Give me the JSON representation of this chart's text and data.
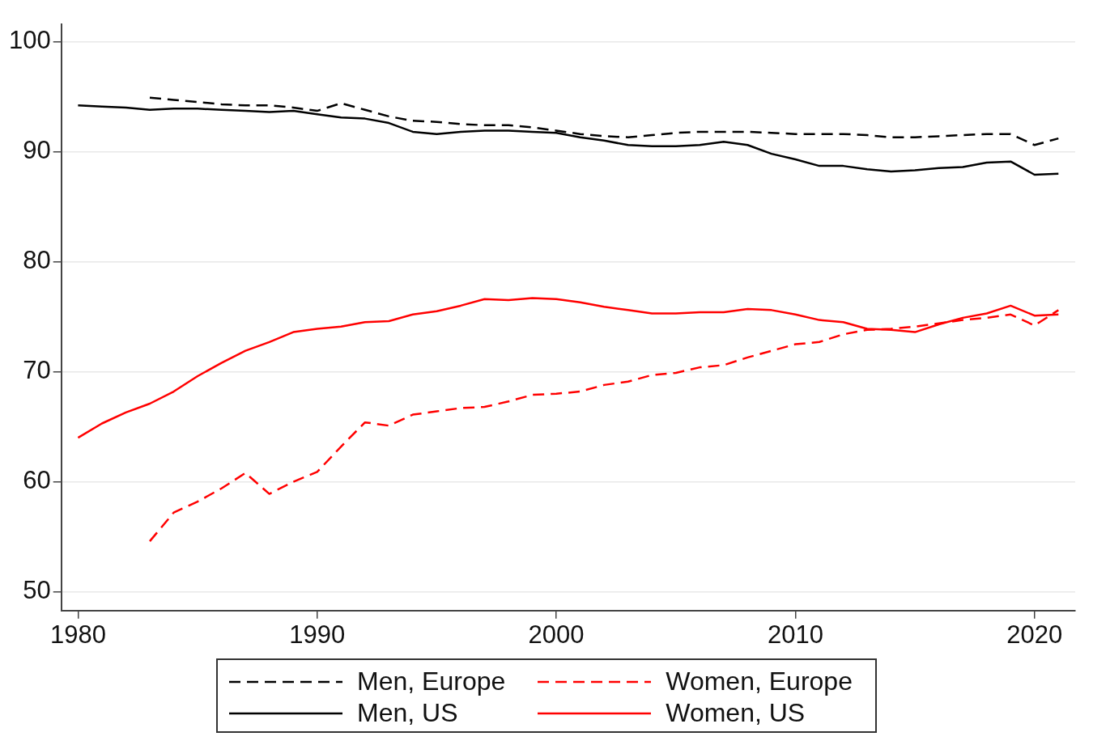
{
  "chart_data": {
    "type": "line",
    "xlim": [
      1979.3,
      2021.7
    ],
    "xticks": [
      1980,
      1990,
      2000,
      2010,
      2020
    ],
    "ylim": [
      48.3,
      101.6
    ],
    "yticks": [
      50,
      60,
      70,
      80,
      90,
      100
    ],
    "grid": "y",
    "legend": "bottom",
    "marker": "none",
    "series": [
      {
        "name": "Men, Europe",
        "color": "#000000",
        "line_style": "dashed",
        "x": [
          1983,
          1984,
          1985,
          1986,
          1987,
          1988,
          1989,
          1990,
          1991,
          1992,
          1993,
          1994,
          1995,
          1996,
          1997,
          1998,
          1999,
          2000,
          2001,
          2002,
          2003,
          2004,
          2005,
          2006,
          2007,
          2008,
          2009,
          2010,
          2011,
          2012,
          2013,
          2014,
          2015,
          2016,
          2017,
          2018,
          2019,
          2020,
          2021
        ],
        "values": [
          94.9,
          94.7,
          94.5,
          94.3,
          94.2,
          94.2,
          94.0,
          93.7,
          94.4,
          93.8,
          93.2,
          92.8,
          92.7,
          92.5,
          92.4,
          92.4,
          92.2,
          91.9,
          91.6,
          91.4,
          91.3,
          91.5,
          91.7,
          91.8,
          91.8,
          91.8,
          91.7,
          91.6,
          91.6,
          91.6,
          91.5,
          91.3,
          91.3,
          91.4,
          91.5,
          91.6,
          91.6,
          90.6,
          91.2
        ]
      },
      {
        "name": "Women, Europe",
        "color": "#ff0000",
        "line_style": "dashed",
        "x": [
          1983,
          1984,
          1985,
          1986,
          1987,
          1988,
          1989,
          1990,
          1991,
          1992,
          1993,
          1994,
          1995,
          1996,
          1997,
          1998,
          1999,
          2000,
          2001,
          2002,
          2003,
          2004,
          2005,
          2006,
          2007,
          2008,
          2009,
          2010,
          2011,
          2012,
          2013,
          2014,
          2015,
          2016,
          2017,
          2018,
          2019,
          2020,
          2021
        ],
        "values": [
          54.6,
          57.2,
          58.2,
          59.4,
          60.8,
          58.9,
          60.0,
          60.9,
          63.2,
          65.4,
          65.1,
          66.1,
          66.4,
          66.7,
          66.8,
          67.3,
          67.9,
          68.0,
          68.2,
          68.8,
          69.1,
          69.7,
          69.9,
          70.4,
          70.6,
          71.3,
          71.9,
          72.5,
          72.7,
          73.4,
          73.8,
          73.9,
          74.1,
          74.4,
          74.7,
          74.9,
          75.2,
          74.2,
          75.6
        ]
      },
      {
        "name": "Men, US",
        "color": "#000000",
        "line_style": "solid",
        "x": [
          1980,
          1981,
          1982,
          1983,
          1984,
          1985,
          1986,
          1987,
          1988,
          1989,
          1990,
          1991,
          1992,
          1993,
          1994,
          1995,
          1996,
          1997,
          1998,
          1999,
          2000,
          2001,
          2002,
          2003,
          2004,
          2005,
          2006,
          2007,
          2008,
          2009,
          2010,
          2011,
          2012,
          2013,
          2014,
          2015,
          2016,
          2017,
          2018,
          2019,
          2020,
          2021
        ],
        "values": [
          94.2,
          94.1,
          94.0,
          93.8,
          93.9,
          93.9,
          93.8,
          93.7,
          93.6,
          93.7,
          93.4,
          93.1,
          93.0,
          92.6,
          91.8,
          91.6,
          91.8,
          91.9,
          91.9,
          91.8,
          91.7,
          91.3,
          91.0,
          90.6,
          90.5,
          90.5,
          90.6,
          90.9,
          90.6,
          89.8,
          89.3,
          88.7,
          88.7,
          88.4,
          88.2,
          88.3,
          88.5,
          88.6,
          89.0,
          89.1,
          87.9,
          88.0
        ]
      },
      {
        "name": "Women, US",
        "color": "#ff0000",
        "line_style": "solid",
        "x": [
          1980,
          1981,
          1982,
          1983,
          1984,
          1985,
          1986,
          1987,
          1988,
          1989,
          1990,
          1991,
          1992,
          1993,
          1994,
          1995,
          1996,
          1997,
          1998,
          1999,
          2000,
          2001,
          2002,
          2003,
          2004,
          2005,
          2006,
          2007,
          2008,
          2009,
          2010,
          2011,
          2012,
          2013,
          2014,
          2015,
          2016,
          2017,
          2018,
          2019,
          2020,
          2021
        ],
        "values": [
          64.0,
          65.3,
          66.3,
          67.1,
          68.2,
          69.6,
          70.8,
          71.9,
          72.7,
          73.6,
          73.9,
          74.1,
          74.5,
          74.6,
          75.2,
          75.5,
          76.0,
          76.6,
          76.5,
          76.7,
          76.6,
          76.3,
          75.9,
          75.6,
          75.3,
          75.3,
          75.4,
          75.4,
          75.7,
          75.6,
          75.2,
          74.7,
          74.5,
          73.9,
          73.8,
          73.6,
          74.3,
          74.9,
          75.3,
          76.0,
          75.1,
          75.2
        ]
      }
    ]
  }
}
